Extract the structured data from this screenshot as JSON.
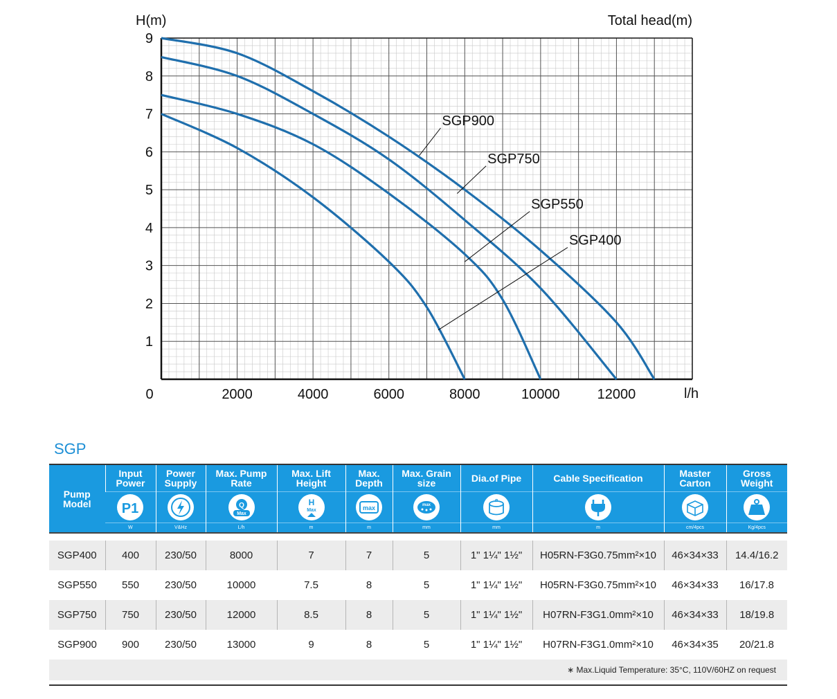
{
  "chart_data": {
    "type": "line",
    "ylabel": "H(m)",
    "ylabel_right": "Total head(m)",
    "xlabel": "l/h",
    "xlim": [
      0,
      14000
    ],
    "ylim": [
      0,
      9
    ],
    "x_ticks": [
      0,
      2000,
      4000,
      6000,
      8000,
      10000,
      12000
    ],
    "y_ticks": [
      1,
      2,
      3,
      4,
      5,
      6,
      7,
      8,
      9
    ],
    "grid": true,
    "series": [
      {
        "name": "SGP900",
        "points": [
          [
            0,
            9
          ],
          [
            2000,
            8.6
          ],
          [
            4000,
            7.6
          ],
          [
            6000,
            6.4
          ],
          [
            8000,
            5.0
          ],
          [
            10000,
            3.4
          ],
          [
            12000,
            1.5
          ],
          [
            13000,
            0
          ]
        ],
        "label_anchor": [
          6800,
          5.9
        ],
        "label_pos": [
          7400,
          6.7
        ]
      },
      {
        "name": "SGP750",
        "points": [
          [
            0,
            8.5
          ],
          [
            2000,
            8.0
          ],
          [
            4000,
            7.0
          ],
          [
            6000,
            5.8
          ],
          [
            8000,
            4.2
          ],
          [
            10000,
            2.4
          ],
          [
            12000,
            0
          ]
        ],
        "label_anchor": [
          7800,
          4.9
        ],
        "label_pos": [
          8600,
          5.7
        ]
      },
      {
        "name": "SGP550",
        "points": [
          [
            0,
            7.5
          ],
          [
            2000,
            7.0
          ],
          [
            4000,
            6.2
          ],
          [
            6000,
            4.9
          ],
          [
            8000,
            3.3
          ],
          [
            9000,
            2.1
          ],
          [
            10000,
            0
          ]
        ],
        "label_anchor": [
          8000,
          3.1
        ],
        "label_pos": [
          9750,
          4.5
        ]
      },
      {
        "name": "SGP400",
        "points": [
          [
            0,
            7
          ],
          [
            2000,
            6.1
          ],
          [
            4000,
            4.8
          ],
          [
            6000,
            3.1
          ],
          [
            7000,
            1.9
          ],
          [
            8000,
            0
          ]
        ],
        "label_anchor": [
          7300,
          1.3
        ],
        "label_pos": [
          10750,
          3.55
        ]
      }
    ]
  },
  "table": {
    "title": "SGP",
    "headers": [
      {
        "label": "Pump Model"
      },
      {
        "label": "Input Power",
        "icon": "p1-icon",
        "unit": "W"
      },
      {
        "label": "Power Supply",
        "icon": "lightning-icon",
        "unit": "V&Hz"
      },
      {
        "label": "Max. Pump Rate",
        "icon": "q-max-icon",
        "unit": "L/h"
      },
      {
        "label": "Max. Lift Height",
        "icon": "h-max-icon",
        "unit": "m"
      },
      {
        "label": "Max. Depth",
        "icon": "depth-max-icon",
        "unit": "m"
      },
      {
        "label": "Max. Grain size",
        "icon": "grain-max-icon",
        "unit": "mm"
      },
      {
        "label": "Dia.of Pipe",
        "icon": "pipe-diameter-icon",
        "unit": "mm"
      },
      {
        "label": "Cable Specification",
        "icon": "plug-icon",
        "unit": "m"
      },
      {
        "label": "Master Carton",
        "icon": "carton-icon",
        "unit": "cm/4pcs"
      },
      {
        "label": "Gross Weight",
        "icon": "weight-icon",
        "unit": "Kg/4pcs"
      }
    ],
    "rows": [
      [
        "SGP400",
        "400",
        "230/50",
        "8000",
        "7",
        "7",
        "5",
        "1\" 1¼\" 1½\"",
        "H05RN-F3G0.75mm²×10",
        "46×34×33",
        "14.4/16.2"
      ],
      [
        "SGP550",
        "550",
        "230/50",
        "10000",
        "7.5",
        "8",
        "5",
        "1\" 1¼\" 1½\"",
        "H05RN-F3G0.75mm²×10",
        "46×34×33",
        "16/17.8"
      ],
      [
        "SGP750",
        "750",
        "230/50",
        "12000",
        "8.5",
        "8",
        "5",
        "1\" 1¼\" 1½\"",
        "H07RN-F3G1.0mm²×10",
        "46×34×33",
        "18/19.8"
      ],
      [
        "SGP900",
        "900",
        "230/50",
        "13000",
        "9",
        "8",
        "5",
        "1\" 1¼\" 1½\"",
        "H07RN-F3G1.0mm²×10",
        "46×34×35",
        "20/21.8"
      ]
    ],
    "note": "∗ Max.Liquid Temperature: 35°C, 110V/60HZ on request"
  },
  "colors": {
    "curve": "#1f6fad",
    "header": "#1a9ae0",
    "shade": "#ececec"
  }
}
